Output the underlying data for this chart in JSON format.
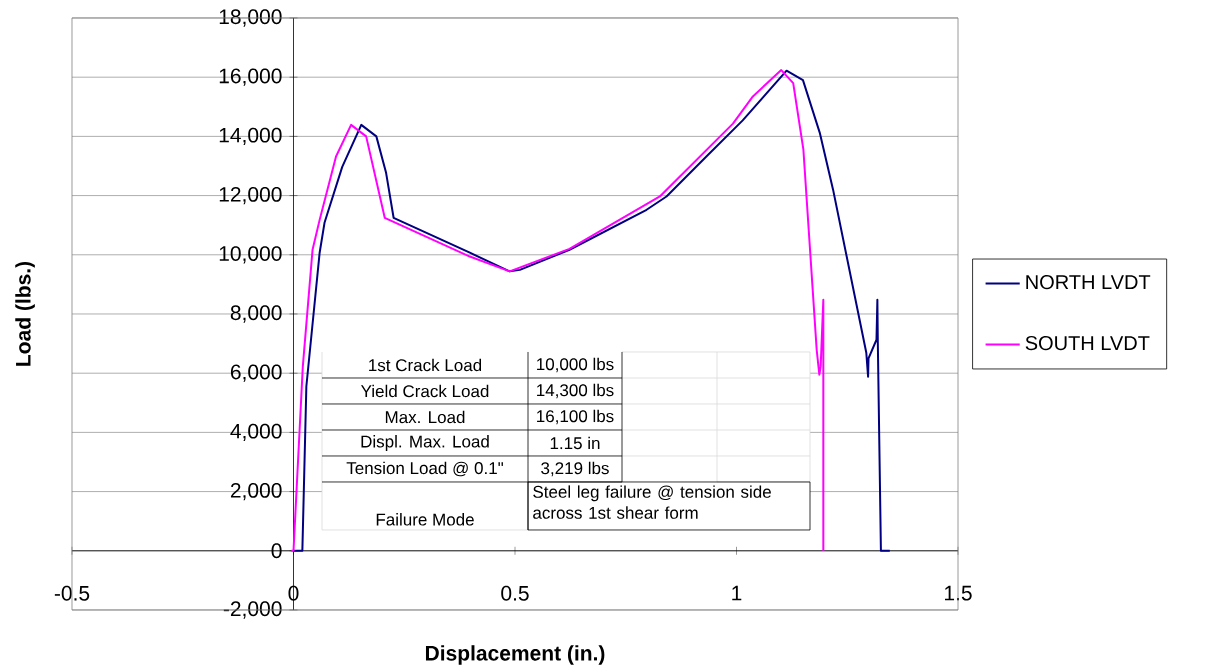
{
  "chart_data": {
    "type": "line",
    "xlabel": "Displacement (in.)",
    "ylabel": "Load (lbs.)",
    "xlim": [
      -0.5,
      1.5
    ],
    "ylim": [
      -2000,
      18000
    ],
    "xticks": [
      -0.5,
      0,
      0.5,
      1,
      1.5
    ],
    "yticks": [
      {
        "value": -2000,
        "label": "-2,000"
      },
      {
        "value": 0,
        "label": "0"
      },
      {
        "value": 2000,
        "label": "2,000"
      },
      {
        "value": 4000,
        "label": "4,000"
      },
      {
        "value": 6000,
        "label": "6,000"
      },
      {
        "value": 8000,
        "label": "8,000"
      },
      {
        "value": 10000,
        "label": "10,000"
      },
      {
        "value": 12000,
        "label": "12,000"
      },
      {
        "value": 14000,
        "label": "14,000"
      },
      {
        "value": 16000,
        "label": "16,000"
      },
      {
        "value": 18000,
        "label": "18,000"
      }
    ],
    "grid": "y",
    "legend": "right",
    "series": [
      {
        "name": "NORTH LVDT",
        "color": "#000080",
        "x": [
          0.0,
          0.02,
          0.029,
          0.059,
          0.07,
          0.11,
          0.153,
          0.187,
          0.209,
          0.226,
          0.398,
          0.488,
          0.511,
          0.623,
          0.797,
          0.842,
          0.932,
          1.014,
          1.113,
          1.15,
          1.188,
          1.218,
          1.293,
          1.297,
          1.298,
          1.316,
          1.318,
          1.319,
          1.326,
          1.346
        ],
        "values": [
          0,
          0,
          5550,
          10070,
          11080,
          12970,
          14390,
          14000,
          12770,
          11250,
          10070,
          9440,
          9490,
          10170,
          11520,
          11970,
          13320,
          14540,
          16220,
          15900,
          14120,
          12200,
          6690,
          5880,
          6500,
          7130,
          8480,
          7030,
          0,
          0
        ]
      },
      {
        "name": "SOUTH LVDT",
        "color": "#ff00ff",
        "x": [
          -0.005,
          0.0,
          0.021,
          0.043,
          0.059,
          0.096,
          0.13,
          0.164,
          0.206,
          0.398,
          0.488,
          0.623,
          0.827,
          0.992,
          1.037,
          1.101,
          1.128,
          1.151,
          1.166,
          1.181,
          1.187,
          1.19,
          1.196,
          1.196
        ],
        "values": [
          0,
          0,
          6220,
          10170,
          11180,
          13320,
          14390,
          14000,
          11250,
          9940,
          9440,
          10200,
          11970,
          14430,
          15350,
          16240,
          15800,
          13550,
          10170,
          6790,
          5950,
          6230,
          8480,
          0
        ]
      }
    ],
    "annotations": [
      "1st Crack Load",
      "10,000 lbs",
      "Yield Crack Load",
      "14,300 lbs",
      "Max. Load",
      "16,100 lbs",
      "Displ. Max. Load",
      "1.15 in",
      "Tension Load @ 0.1\"",
      "3,219 lbs",
      "Failure Mode",
      "Steel leg failure @ tension side across 1st shear form"
    ]
  }
}
